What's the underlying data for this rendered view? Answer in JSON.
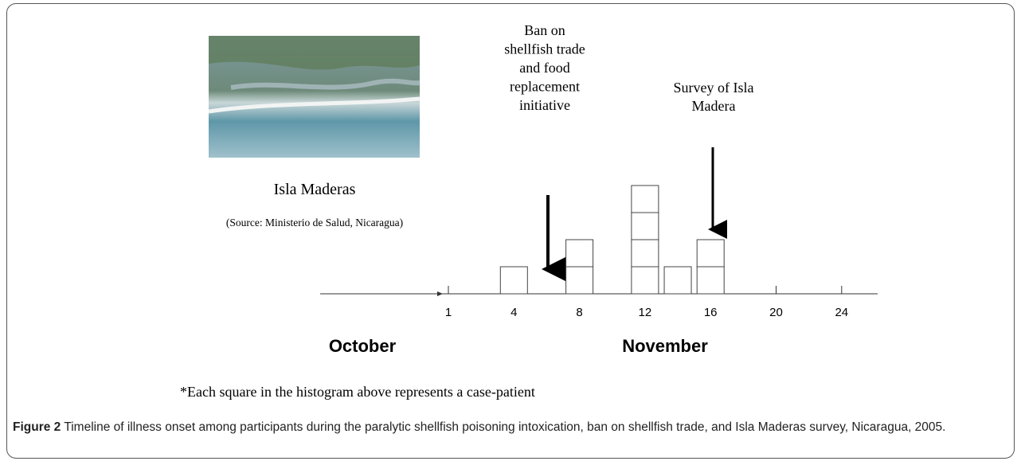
{
  "figure": {
    "photo_title": "Isla Maderas",
    "photo_source": "(Source: Ministerio de Salud, Nicaragua)",
    "ban_annotation": [
      "Ban on",
      "shellfish trade",
      "and food",
      "replacement",
      "initiative"
    ],
    "survey_annotation": [
      "Survey of Isla",
      "Madera"
    ],
    "histogram": {
      "ticks": [
        1,
        4,
        8,
        12,
        16,
        20,
        24
      ],
      "days": [
        4,
        8,
        12,
        14,
        16
      ],
      "counts": [
        1,
        2,
        4,
        1,
        2
      ]
    },
    "months": [
      "October",
      "November"
    ],
    "footnote": "*Each square in the histogram above represents a case-patient",
    "caption_label": "Figure 2",
    "caption_text": "Timeline of illness onset among participants during the paralytic shellfish poisoning intoxication, ban on shellfish trade, and Isla Maderas survey, Nicaragua, 2005."
  }
}
